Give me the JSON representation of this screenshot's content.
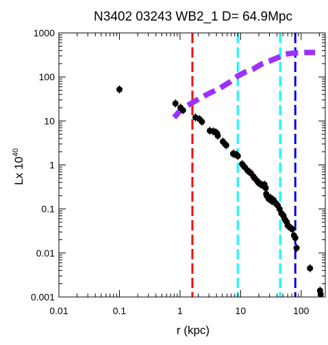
{
  "chart_data": {
    "type": "scatter",
    "title": "N3402 03243 WB2_1  D= 64.9Mpc",
    "xlabel": "r (kpc)",
    "ylabel": "Lx 10",
    "ylabel_exponent": "40",
    "xscale": "log",
    "yscale": "log",
    "xlim": [
      0.01,
      250
    ],
    "ylim": [
      0.001,
      1000
    ],
    "x_ticks": [
      {
        "value": 0.01,
        "label": "0.01"
      },
      {
        "value": 0.1,
        "label": "0.1"
      },
      {
        "value": 1,
        "label": "1"
      },
      {
        "value": 10,
        "label": "10"
      },
      {
        "value": 100,
        "label": "100"
      }
    ],
    "y_ticks": [
      {
        "value": 0.001,
        "label": "0.001"
      },
      {
        "value": 0.01,
        "label": "0.01"
      },
      {
        "value": 0.1,
        "label": "0.1"
      },
      {
        "value": 1,
        "label": "1"
      },
      {
        "value": 10,
        "label": "10"
      },
      {
        "value": 100,
        "label": "100"
      },
      {
        "value": 1000,
        "label": "1000"
      }
    ],
    "grid": false,
    "series": [
      {
        "role": "points",
        "color": "#000000",
        "marker": "filled-circle",
        "points": [
          [
            0.1,
            52
          ],
          [
            0.84,
            25
          ],
          [
            1.02,
            20
          ],
          [
            1.12,
            17.5
          ],
          [
            1.8,
            12
          ],
          [
            2.1,
            11
          ],
          [
            2.3,
            9.6
          ],
          [
            3.1,
            6.0
          ],
          [
            3.55,
            5.8
          ],
          [
            3.9,
            5.5
          ],
          [
            4.1,
            5.2
          ],
          [
            4.2,
            4.6
          ],
          [
            5.1,
            3.4
          ],
          [
            5.5,
            3.0
          ],
          [
            5.8,
            2.8
          ],
          [
            7.5,
            1.8
          ],
          [
            7.9,
            1.78
          ],
          [
            8.6,
            1.7
          ],
          [
            9.0,
            1.6
          ],
          [
            10.6,
            1.05
          ],
          [
            11.2,
            0.95
          ],
          [
            11.8,
            0.88
          ],
          [
            13.0,
            0.75
          ],
          [
            13.8,
            0.7
          ],
          [
            14.8,
            0.65
          ],
          [
            16.2,
            0.55
          ],
          [
            17.0,
            0.5
          ],
          [
            18.6,
            0.44
          ],
          [
            19.5,
            0.4
          ],
          [
            21.0,
            0.37
          ],
          [
            22.0,
            0.36
          ],
          [
            23.5,
            0.34
          ],
          [
            24.8,
            0.36
          ],
          [
            26.0,
            0.3
          ],
          [
            26.5,
            0.22
          ],
          [
            27.0,
            0.2
          ],
          [
            28.0,
            0.19
          ],
          [
            29.0,
            0.17
          ],
          [
            31.0,
            0.18
          ],
          [
            33.0,
            0.15
          ],
          [
            35.0,
            0.16
          ],
          [
            37.0,
            0.14
          ],
          [
            39.0,
            0.13
          ],
          [
            41.0,
            0.12
          ],
          [
            44.0,
            0.1
          ],
          [
            47.0,
            0.08
          ],
          [
            49.0,
            0.075
          ],
          [
            51.0,
            0.07
          ],
          [
            53.0,
            0.06
          ],
          [
            55.0,
            0.055
          ],
          [
            58.0,
            0.05
          ],
          [
            60.0,
            0.042
          ],
          [
            63.0,
            0.04
          ],
          [
            67.0,
            0.037
          ],
          [
            71.0,
            0.035
          ],
          [
            76.0,
            0.025
          ],
          [
            80.0,
            0.022
          ],
          [
            84.0,
            0.013
          ],
          [
            140.0,
            0.0045
          ],
          [
            205.0,
            0.0014
          ],
          [
            210.0,
            0.00115
          ]
        ]
      },
      {
        "role": "cumulative-curve",
        "color": "#9b30ff",
        "style": "dashed",
        "points": [
          [
            0.8,
            12
          ],
          [
            1.0,
            17
          ],
          [
            1.3,
            22
          ],
          [
            1.6,
            26
          ],
          [
            2.0,
            31
          ],
          [
            3.0,
            42
          ],
          [
            4.5,
            55
          ],
          [
            6.5,
            75
          ],
          [
            9.0,
            105
          ],
          [
            12.0,
            130
          ],
          [
            16.0,
            150
          ],
          [
            22.0,
            195
          ],
          [
            30.0,
            230
          ],
          [
            40.0,
            270
          ],
          [
            55.0,
            330
          ],
          [
            75.0,
            350
          ],
          [
            110.0,
            360
          ],
          [
            170.0,
            360
          ]
        ]
      }
    ],
    "vertical_lines": [
      {
        "x": 1.6,
        "color": "#ff0000",
        "style": "dashed"
      },
      {
        "x": 9.0,
        "color": "#00ffff",
        "style": "dashed"
      },
      {
        "x": 45.0,
        "color": "#00ffff",
        "style": "dashed"
      },
      {
        "x": 80.0,
        "color": "#0000ee",
        "style": "dashed"
      }
    ]
  }
}
